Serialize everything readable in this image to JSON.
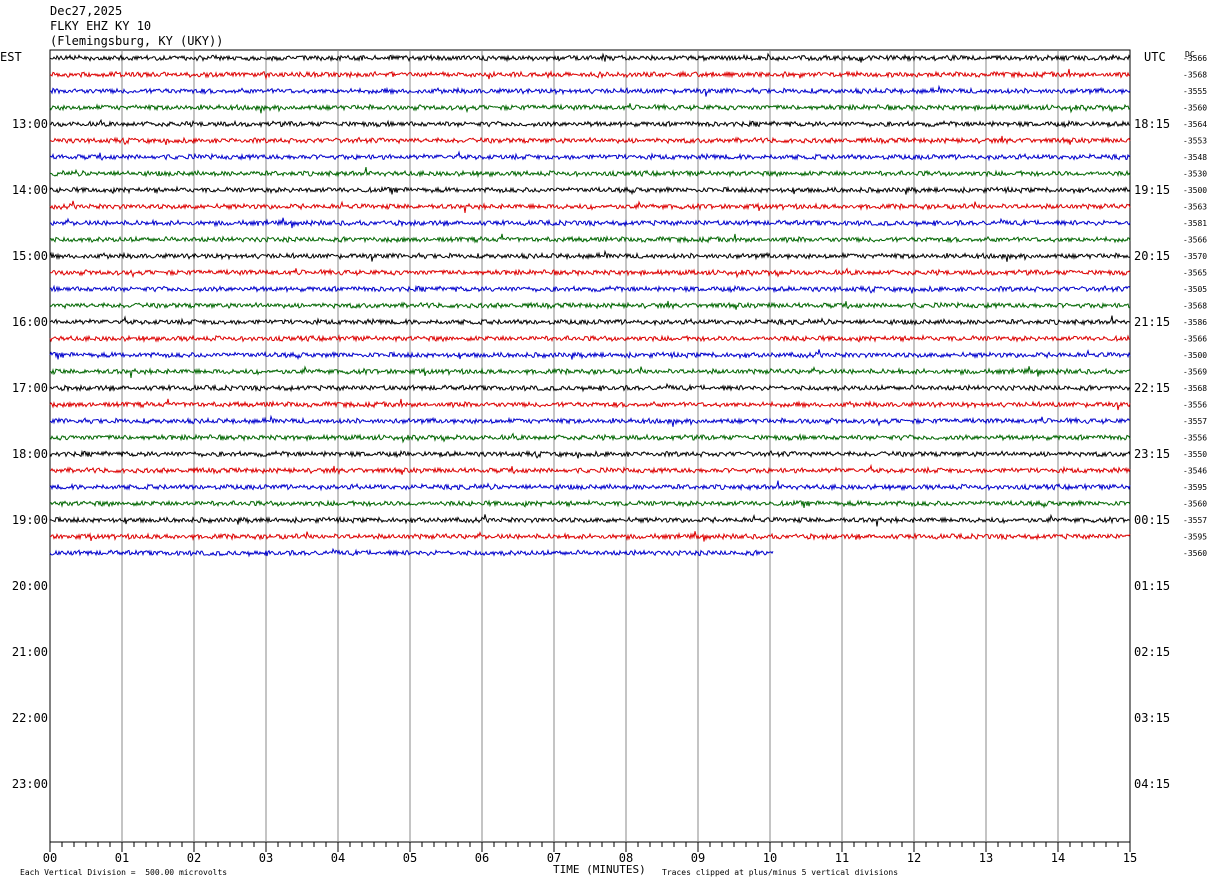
{
  "header": {
    "date": "Dec27,2025",
    "station": "FLKY EHZ KY 10",
    "location": "(Flemingsburg, KY (UKY))"
  },
  "labels": {
    "left_timezone": "EST",
    "right_timezone": "UTC",
    "dc_label": "DC"
  },
  "footer": {
    "scale_note": "Each Vertical Division =  500.00 microvolts",
    "clip_note": "Traces clipped at plus/minus 5 vertical divisions",
    "xlabel": "TIME (MINUTES)"
  },
  "chart_data": {
    "type": "line",
    "title": "",
    "xlabel": "TIME (MINUTES)",
    "x_ticks": [
      "00",
      "01",
      "02",
      "03",
      "04",
      "05",
      "06",
      "07",
      "08",
      "09",
      "10",
      "11",
      "12",
      "13",
      "14",
      "15"
    ],
    "xlim": [
      0,
      15
    ],
    "left_hour_labels": [
      "13:00",
      "14:00",
      "15:00",
      "16:00",
      "17:00",
      "18:00",
      "19:00",
      "20:00",
      "21:00",
      "22:00",
      "23:00"
    ],
    "right_hour_labels": [
      "18:15",
      "19:15",
      "20:15",
      "21:15",
      "22:15",
      "23:15",
      "00:15",
      "01:15",
      "02:15",
      "03:15",
      "04:15"
    ],
    "first_labeled_row": 4,
    "rows_per_hour": 4,
    "total_rows": 48,
    "trace_colors": [
      "#000000",
      "#dd0000",
      "#0000cc",
      "#006600"
    ],
    "dc_offsets": [
      "-3566",
      "-3568",
      "-3555",
      "-3560",
      "-3564",
      "-3553",
      "-3548",
      "-3530",
      "-3500",
      "-3563",
      "-3581",
      "-3566",
      "-3570",
      "-3565",
      "-3505",
      "-3568",
      "-3586",
      "-3566",
      "-3500",
      "-3569",
      "-3568",
      "-3556",
      "-3557",
      "-3556",
      "-3550",
      "-3546",
      "-3595",
      "-3560",
      "-3557",
      "-3595",
      "-3560"
    ],
    "traces_count": 31,
    "last_trace_end_minute": 10.05,
    "grid": true
  }
}
